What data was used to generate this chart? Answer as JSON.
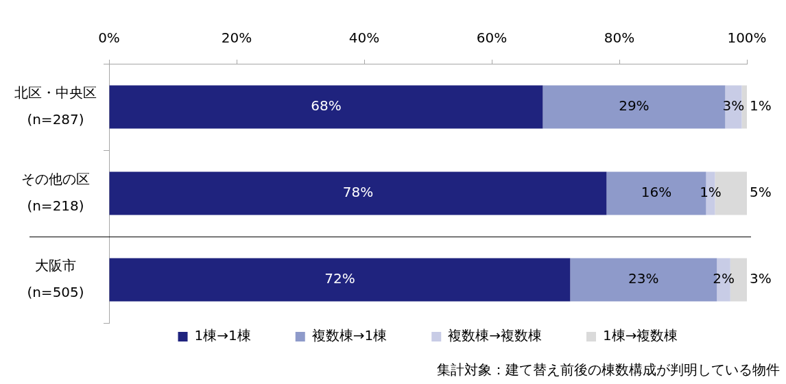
{
  "chart_data": {
    "type": "bar",
    "orientation": "horizontal",
    "stacked": true,
    "categories": [
      "北区・中央区\n(n=287)",
      "その他の区\n(n=218)",
      "大阪市\n(n=505)"
    ],
    "series": [
      {
        "name": "1棟→1棟",
        "color": "#1f237e",
        "values": [
          68.0,
          78.0,
          72.3
        ],
        "value_labels": [
          "68%",
          "78%",
          "72%"
        ]
      },
      {
        "name": "複数棟→1棟",
        "color": "#8e9aca",
        "values": [
          28.6,
          15.6,
          23.0
        ],
        "value_labels": [
          "29%",
          "16%",
          "23%"
        ]
      },
      {
        "name": "複数棟→複数棟",
        "color": "#c8cce6",
        "values": [
          2.6,
          1.4,
          2.1
        ],
        "value_labels": [
          "3%",
          "1%",
          "2%"
        ]
      },
      {
        "name": "1棟→複数棟",
        "color": "#dadada",
        "values": [
          0.8,
          5.0,
          2.6
        ],
        "value_labels": [
          "1%",
          "5%",
          "3%"
        ]
      }
    ],
    "xlim": [
      0,
      100
    ],
    "xticks": [
      {
        "value": 0,
        "label": "0%"
      },
      {
        "value": 20,
        "label": "20%"
      },
      {
        "value": 40,
        "label": "40%"
      },
      {
        "value": 60,
        "label": "60%"
      },
      {
        "value": 80,
        "label": "80%"
      },
      {
        "value": 100,
        "label": "100%"
      }
    ],
    "grid": false,
    "legend": "bottom",
    "annotations": [
      "集計対象：建て替え前後の棟数構成が判明している物件"
    ]
  }
}
